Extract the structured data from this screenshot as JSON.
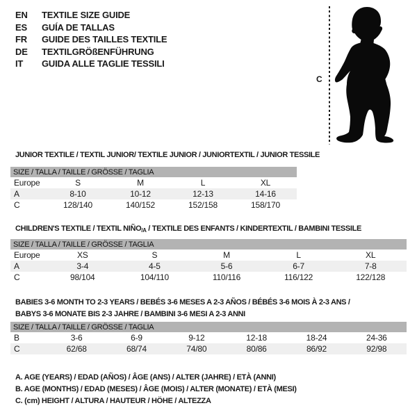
{
  "colors": {
    "band_gray": "#b3b3b3",
    "row_shade": "#efefef",
    "text": "#1a1a1a",
    "silhouette": "#0a0a0a"
  },
  "language_header": [
    {
      "code": "EN",
      "label": "TEXTILE SIZE GUIDE"
    },
    {
      "code": "ES",
      "label": "GUÍA DE TALLAS"
    },
    {
      "code": "FR",
      "label": "GUIDE DES TAILLES TEXTILE"
    },
    {
      "code": "DE",
      "label": "TEXTILGRÖßENFÜHRUNG"
    },
    {
      "code": "IT",
      "label": "GUIDA ALLE TAGLIE TESSILI"
    }
  ],
  "figure": {
    "height_label": "C"
  },
  "sections": [
    {
      "title": "JUNIOR TEXTILE / TEXTIL JUNIOR/ TEXTILE JUNIOR / JUNIORTEXTIL / JUNIOR TESSILE",
      "size_header": "SIZE / TALLA / TAILLE / GRÖSSE / TAGLIA",
      "rows": [
        [
          "Europe",
          "S",
          "M",
          "L",
          "XL"
        ],
        [
          "A",
          "8-10",
          "10-12",
          "12-13",
          "14-16"
        ],
        [
          "C",
          "128/140",
          "140/152",
          "152/158",
          "158/170"
        ]
      ]
    },
    {
      "title_pre": "CHILDREN'S TEXTILE / TEXTIL NIÑO",
      "title_sub": "/A",
      "title_post": " / TEXTILE DES ENFANTS / KINDERTEXTIL / BAMBINI TESSILE",
      "size_header": "SIZE / TALLA / TAILLE / GRÖSSE / TAGLIA",
      "rows": [
        [
          "Europe",
          "XS",
          "S",
          "M",
          "L",
          "XL"
        ],
        [
          "A",
          "3-4",
          "4-5",
          "5-6",
          "6-7",
          "7-8"
        ],
        [
          "C",
          "98/104",
          "104/110",
          "110/116",
          "116/122",
          "122/128"
        ]
      ]
    },
    {
      "title_line1": "BABIES 3-6 MONTH TO 2-3 YEARS / BEBÉS 3-6 MESES A 2-3 AÑOS / BÉBÉS 3-6 MOIS À 2-3 ANS /",
      "title_line2": "BABYS 3-6 MONATE BIS 2-3 JAHRE / BAMBINI 3-6 MESI A 2-3 ANNI",
      "size_header": "SIZE / TALLA / TAILLE / GRÖSSE / TAGLIA",
      "rows": [
        [
          "B",
          "3-6",
          "6-9",
          "9-12",
          "12-18",
          "18-24",
          "24-36"
        ],
        [
          "C",
          "62/68",
          "68/74",
          "74/80",
          "80/86",
          "86/92",
          "92/98"
        ]
      ]
    }
  ],
  "footnotes": [
    "A. AGE (YEARS) / EDAD (AÑOS) / ÂGE (ANS) / ALTER (JAHRE) / ETÀ (ANNI)",
    "B. AGE (MONTHS) / EDAD (MESES) / ÂGE (MOIS) / ALTER (MONATE) / ETÀ (MESI)",
    "C. (cm) HEIGHT / ALTURA / HAUTEUR / HÖHE / ALTEZZA"
  ]
}
